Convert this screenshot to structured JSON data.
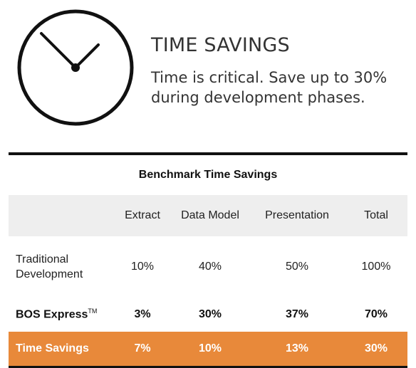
{
  "header": {
    "icon": "clock-icon",
    "title": "TIME SAVINGS",
    "tagline": "Time is critical. Save up to 30% during development phases."
  },
  "table": {
    "caption": "Benchmark Time Savings",
    "columns": [
      "",
      "Extract",
      "Data Model",
      "Presentation",
      "Total"
    ],
    "rows": {
      "traditional": {
        "label": "Traditional Development",
        "extract": "10%",
        "data_model": "40%",
        "presentation": "50%",
        "total": "100%"
      },
      "bos": {
        "label": "BOS Express",
        "trademark": "TM",
        "extract": "3%",
        "data_model": "30%",
        "presentation": "37%",
        "total": "70%"
      },
      "savings": {
        "label": "Time Savings",
        "extract": "7%",
        "data_model": "10%",
        "presentation": "13%",
        "total": "30%"
      }
    },
    "highlight_color": "#e8893a"
  }
}
